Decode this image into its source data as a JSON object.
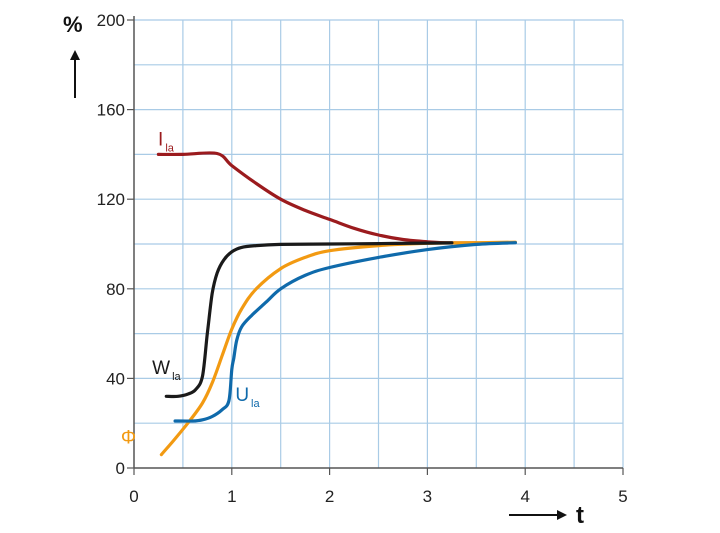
{
  "chart_data": {
    "type": "line",
    "title": "",
    "ylabel": "%",
    "xlabel": "t",
    "xlim": [
      0,
      5
    ],
    "ylim": [
      0,
      200
    ],
    "x_ticks": [
      0,
      1,
      2,
      3,
      4,
      5
    ],
    "y_ticks": [
      0,
      40,
      80,
      120,
      160,
      200
    ],
    "grid": true,
    "series": [
      {
        "name": "Ila",
        "label_main": "I",
        "label_sub": "la",
        "color": "#9b1b1e",
        "x": [
          0.25,
          0.5,
          0.85,
          1.0,
          1.25,
          1.5,
          1.75,
          2.0,
          2.25,
          2.5,
          2.75,
          3.0,
          3.25,
          3.5
        ],
        "y": [
          140,
          140,
          140.4,
          135,
          127,
          120,
          115,
          111,
          107,
          104,
          102,
          101,
          100.5,
          100.5
        ]
      },
      {
        "name": "Wla",
        "label_main": "W",
        "label_sub": "la",
        "color": "#1a1a1a",
        "x": [
          0.33,
          0.45,
          0.55,
          0.63,
          0.7,
          0.75,
          0.8,
          0.85,
          0.92,
          1.0,
          1.1,
          1.25,
          1.5,
          2.0,
          2.5,
          3.0,
          3.25
        ],
        "y": [
          32,
          32,
          33,
          35,
          41,
          60,
          78,
          87,
          93,
          96.5,
          98.5,
          99.3,
          99.8,
          100,
          100.2,
          100.4,
          100.5
        ]
      },
      {
        "name": "Phi",
        "label_main": "Φ",
        "label_sub": "",
        "color": "#f29a12",
        "x": [
          0.28,
          0.4,
          0.55,
          0.7,
          0.8,
          0.9,
          1.0,
          1.1,
          1.25,
          1.5,
          1.75,
          2.0,
          2.5,
          3.0,
          3.5,
          3.9
        ],
        "y": [
          6,
          12,
          20,
          29,
          38,
          50,
          62,
          71,
          80,
          89,
          94,
          97,
          99.3,
          100.3,
          100.6,
          100.8
        ]
      },
      {
        "name": "Ula",
        "label_main": "U",
        "label_sub": "la",
        "color": "#0f6aab",
        "x": [
          0.42,
          0.6,
          0.7,
          0.8,
          0.9,
          0.97,
          1.0,
          1.02,
          1.05,
          1.1,
          1.2,
          1.35,
          1.5,
          1.75,
          2.0,
          2.5,
          3.0,
          3.5,
          3.9
        ],
        "y": [
          21,
          21,
          21.5,
          23,
          26,
          30,
          44,
          49,
          57,
          63,
          68,
          74,
          80,
          86,
          89.5,
          94,
          97.5,
          99.8,
          100.6
        ]
      }
    ]
  }
}
